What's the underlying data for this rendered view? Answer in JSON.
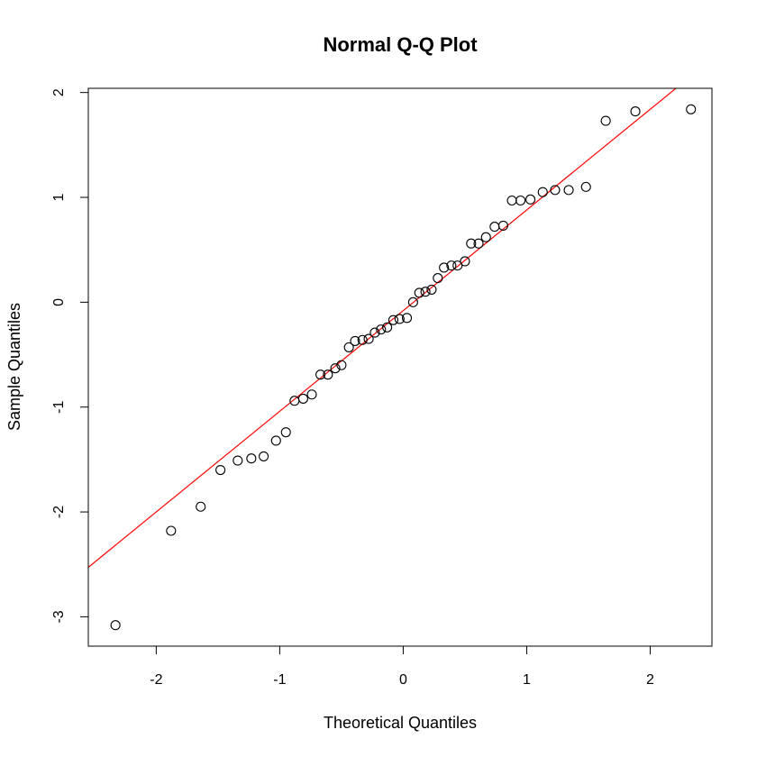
{
  "chart_data": {
    "type": "scatter",
    "title": "Normal Q-Q Plot",
    "xlabel": "Theoretical Quantiles",
    "ylabel": "Sample Quantiles",
    "xlim": [
      -2.55,
      2.5
    ],
    "ylim": [
      -3.28,
      2.04
    ],
    "xticks": [
      -2,
      -1,
      0,
      1,
      2
    ],
    "yticks": [
      -3,
      -2,
      -1,
      0,
      1,
      2
    ],
    "grid": false,
    "colors": {
      "points": "#000000",
      "line": "#ff0000",
      "axes": "#000000"
    },
    "reference_line": {
      "intercept": -0.08,
      "slope": 0.96
    },
    "points": [
      [
        -2.33,
        -3.08
      ],
      [
        -1.88,
        -2.18
      ],
      [
        -1.64,
        -1.95
      ],
      [
        -1.48,
        -1.6
      ],
      [
        -1.34,
        -1.51
      ],
      [
        -1.23,
        -1.49
      ],
      [
        -1.13,
        -1.47
      ],
      [
        -1.03,
        -1.32
      ],
      [
        -0.95,
        -1.24
      ],
      [
        -0.88,
        -0.94
      ],
      [
        -0.81,
        -0.92
      ],
      [
        -0.74,
        -0.88
      ],
      [
        -0.67,
        -0.69
      ],
      [
        -0.61,
        -0.69
      ],
      [
        -0.55,
        -0.63
      ],
      [
        -0.5,
        -0.6
      ],
      [
        -0.44,
        -0.43
      ],
      [
        -0.39,
        -0.37
      ],
      [
        -0.33,
        -0.36
      ],
      [
        -0.28,
        -0.35
      ],
      [
        -0.23,
        -0.29
      ],
      [
        -0.18,
        -0.26
      ],
      [
        -0.13,
        -0.24
      ],
      [
        -0.08,
        -0.17
      ],
      [
        -0.03,
        -0.16
      ],
      [
        0.03,
        -0.15
      ],
      [
        0.08,
        0.0
      ],
      [
        0.13,
        0.09
      ],
      [
        0.18,
        0.1
      ],
      [
        0.23,
        0.12
      ],
      [
        0.28,
        0.23
      ],
      [
        0.33,
        0.33
      ],
      [
        0.39,
        0.35
      ],
      [
        0.44,
        0.35
      ],
      [
        0.5,
        0.39
      ],
      [
        0.55,
        0.56
      ],
      [
        0.61,
        0.56
      ],
      [
        0.67,
        0.62
      ],
      [
        0.74,
        0.72
      ],
      [
        0.81,
        0.73
      ],
      [
        0.88,
        0.97
      ],
      [
        0.95,
        0.97
      ],
      [
        1.03,
        0.98
      ],
      [
        1.13,
        1.05
      ],
      [
        1.23,
        1.07
      ],
      [
        1.34,
        1.07
      ],
      [
        1.48,
        1.1
      ],
      [
        1.64,
        1.73
      ],
      [
        1.88,
        1.82
      ],
      [
        2.33,
        1.84
      ]
    ]
  }
}
